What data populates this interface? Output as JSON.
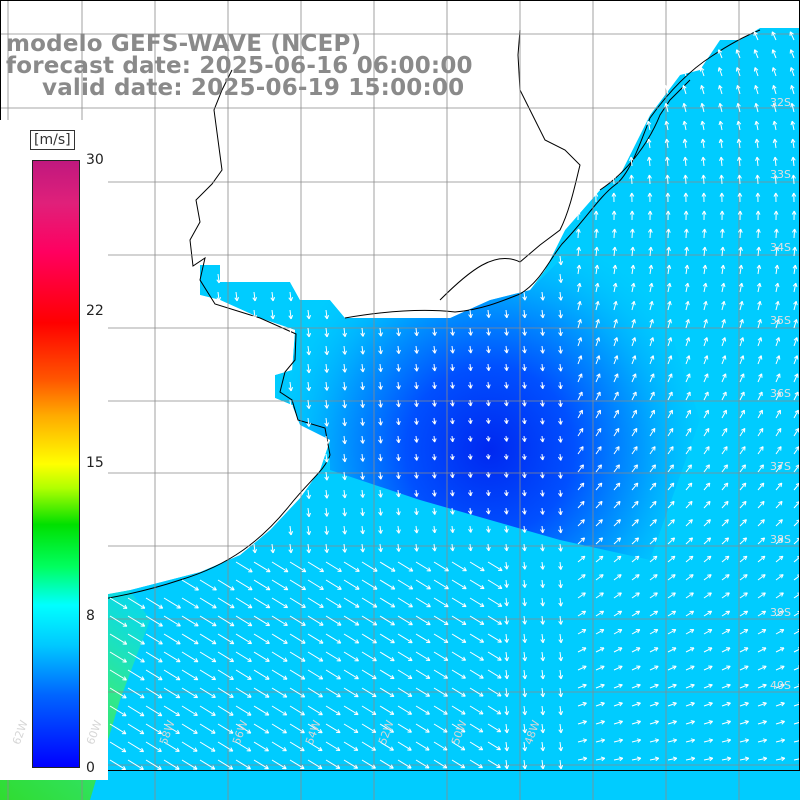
{
  "title": {
    "line1": "modelo GEFS-WAVE (NCEP)",
    "line2": "forecast date: 2025-06-16 06:00:00",
    "line3": "valid date: 2025-06-19 15:00:00"
  },
  "colorbar": {
    "unit": "[m/s]",
    "ticks": [
      {
        "label": "30",
        "value": 30
      },
      {
        "label": "22",
        "value": 22
      },
      {
        "label": "15",
        "value": 15
      },
      {
        "label": "8",
        "value": 8
      },
      {
        "label": "0",
        "value": 0
      }
    ],
    "min": 0,
    "max": 30
  },
  "map_labels": {
    "lon": [
      "62W",
      "60W",
      "58W",
      "56W",
      "54W",
      "52W",
      "50W",
      "48W"
    ],
    "lat": [
      "32S",
      "33S",
      "34S",
      "35S",
      "36S",
      "37S",
      "38S",
      "39S",
      "40S"
    ]
  },
  "colors": {
    "ocean_low": "#0044ff",
    "ocean_mid": "#00d0ff",
    "ocean_high": "#30e040",
    "land": "#ffffff",
    "grid": "#888888",
    "coast": "#000000",
    "arrows": "#ffffff",
    "title": "#8a8a8a"
  }
}
